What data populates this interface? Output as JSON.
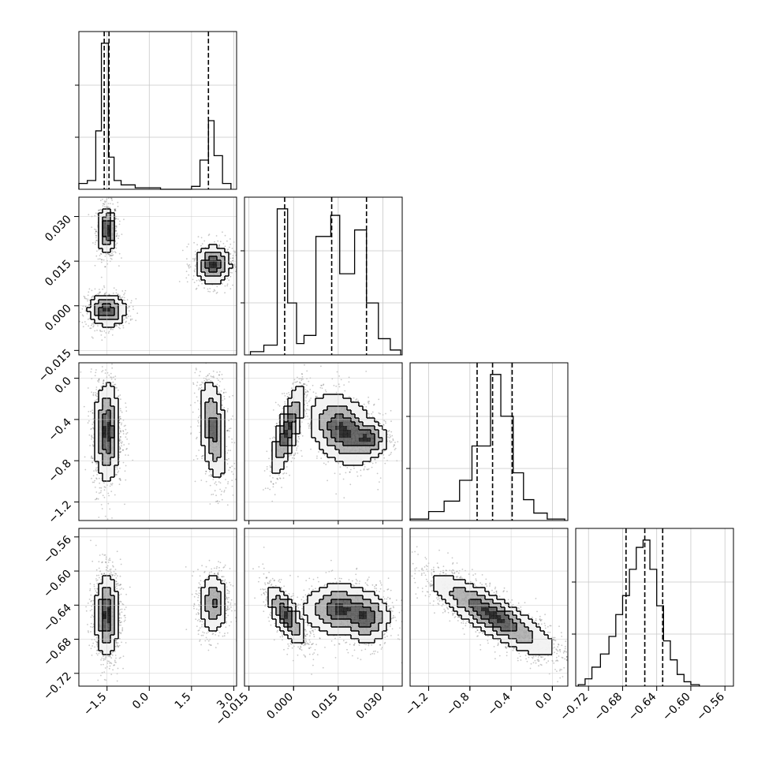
{
  "chart_data": {
    "type": "corner",
    "parameters": 4,
    "axes": [
      {
        "id": "p0",
        "range": [
          -2.5,
          3.1
        ],
        "ticks": [
          -1.5,
          0.0,
          1.5,
          3.0
        ],
        "tick_labels": [
          "−1.5",
          "0.0",
          "1.5",
          "3.0"
        ]
      },
      {
        "id": "p1",
        "range": [
          -0.0165,
          0.0365
        ],
        "ticks": [
          -0.015,
          0.0,
          0.015,
          0.03
        ],
        "tick_labels": [
          "−0.015",
          "0.000",
          "0.015",
          "0.030"
        ]
      },
      {
        "id": "p2",
        "range": [
          -1.38,
          0.15
        ],
        "ticks": [
          -1.2,
          -0.8,
          -0.4,
          0.0
        ],
        "tick_labels": [
          "−1.2",
          "−0.8",
          "−0.4",
          "0.0"
        ]
      },
      {
        "id": "p3",
        "range": [
          -0.735,
          -0.55
        ],
        "ticks": [
          -0.72,
          -0.68,
          -0.64,
          -0.6,
          -0.56
        ],
        "tick_labels": [
          "−0.72",
          "−0.68",
          "−0.64",
          "−0.60",
          "−0.56"
        ]
      }
    ],
    "histograms": [
      {
        "param": "p0",
        "bins": [
          [
            -2.5,
            -2.2,
            0.04
          ],
          [
            -2.2,
            -1.9,
            0.06
          ],
          [
            -1.9,
            -1.7,
            0.4
          ],
          [
            -1.7,
            -1.45,
            1.0
          ],
          [
            -1.45,
            -1.25,
            0.22
          ],
          [
            -1.25,
            -1.0,
            0.06
          ],
          [
            -1.0,
            -0.5,
            0.03
          ],
          [
            -0.5,
            0.4,
            0.01
          ],
          [
            0.4,
            1.5,
            0.0
          ],
          [
            1.5,
            1.8,
            0.02
          ],
          [
            1.8,
            2.1,
            0.2
          ],
          [
            2.1,
            2.3,
            0.47
          ],
          [
            2.3,
            2.6,
            0.23
          ],
          [
            2.6,
            2.9,
            0.04
          ]
        ],
        "quantiles": [
          -1.6,
          -1.43,
          2.1
        ]
      },
      {
        "param": "p1",
        "bins": [
          [
            -0.0145,
            -0.01,
            0.02
          ],
          [
            -0.01,
            -0.0055,
            0.06
          ],
          [
            -0.0055,
            -0.002,
            0.9
          ],
          [
            -0.002,
            0.001,
            0.32
          ],
          [
            0.001,
            0.0035,
            0.07
          ],
          [
            0.0035,
            0.0075,
            0.12
          ],
          [
            0.0075,
            0.0125,
            0.73
          ],
          [
            0.0125,
            0.0155,
            0.86
          ],
          [
            0.0155,
            0.0205,
            0.5
          ],
          [
            0.0205,
            0.0245,
            0.77
          ],
          [
            0.0245,
            0.0285,
            0.32
          ],
          [
            0.0285,
            0.0325,
            0.1
          ],
          [
            0.0325,
            0.036,
            0.03
          ]
        ],
        "quantiles": [
          -0.003,
          0.0128,
          0.0245
        ]
      },
      {
        "param": "p2",
        "bins": [
          [
            -1.38,
            -1.2,
            0.01
          ],
          [
            -1.2,
            -1.05,
            0.06
          ],
          [
            -1.05,
            -0.9,
            0.13
          ],
          [
            -0.9,
            -0.78,
            0.27
          ],
          [
            -0.78,
            -0.6,
            0.5
          ],
          [
            -0.6,
            -0.5,
            0.98
          ],
          [
            -0.5,
            -0.38,
            0.7
          ],
          [
            -0.38,
            -0.28,
            0.32
          ],
          [
            -0.28,
            -0.18,
            0.14
          ],
          [
            -0.18,
            -0.05,
            0.05
          ],
          [
            -0.05,
            0.12,
            0.01
          ]
        ],
        "quantiles": [
          -0.73,
          -0.58,
          -0.39
        ]
      },
      {
        "param": "p3",
        "bins": [
          [
            -0.732,
            -0.724,
            0.01
          ],
          [
            -0.724,
            -0.716,
            0.05
          ],
          [
            -0.716,
            -0.706,
            0.13
          ],
          [
            -0.706,
            -0.696,
            0.22
          ],
          [
            -0.696,
            -0.688,
            0.34
          ],
          [
            -0.688,
            -0.68,
            0.49
          ],
          [
            -0.68,
            -0.672,
            0.62
          ],
          [
            -0.672,
            -0.664,
            0.8
          ],
          [
            -0.664,
            -0.656,
            0.95
          ],
          [
            -0.656,
            -0.648,
            1.0
          ],
          [
            -0.648,
            -0.64,
            0.8
          ],
          [
            -0.64,
            -0.632,
            0.55
          ],
          [
            -0.632,
            -0.624,
            0.31
          ],
          [
            -0.624,
            -0.616,
            0.18
          ],
          [
            -0.616,
            -0.608,
            0.08
          ],
          [
            -0.608,
            -0.6,
            0.03
          ],
          [
            -0.6,
            -0.59,
            0.01
          ]
        ],
        "quantiles": [
          -0.676,
          -0.654,
          -0.633
        ]
      }
    ],
    "density_panels": [
      {
        "x": "p0",
        "y": "p1",
        "clusters": [
          {
            "cx": -1.5,
            "cy": 0.0253,
            "sx": 0.13,
            "sy": 0.0032,
            "rho": 0.0,
            "w": 0.35
          },
          {
            "cx": -1.5,
            "cy": -0.0015,
            "sx": 0.27,
            "sy": 0.0022,
            "rho": 0.0,
            "w": 0.32
          },
          {
            "cx": 2.28,
            "cy": 0.0138,
            "sx": 0.25,
            "sy": 0.0026,
            "rho": 0.0,
            "w": 0.33
          }
        ],
        "contour_levels": [
          0.05,
          0.25,
          0.6
        ]
      },
      {
        "x": "p0",
        "y": "p2",
        "clusters": [
          {
            "cx": -1.5,
            "cy": -0.52,
            "sx": 0.19,
            "sy": 0.19,
            "rho": 0.0,
            "w": 0.58
          },
          {
            "cx": 2.28,
            "cy": -0.5,
            "sx": 0.2,
            "sy": 0.2,
            "rho": -0.35,
            "w": 0.42
          }
        ],
        "contour_levels": [
          0.05,
          0.25,
          0.6
        ]
      },
      {
        "x": "p1",
        "y": "p2",
        "clusters": [
          {
            "cx": -0.002,
            "cy": -0.5,
            "sx": 0.0022,
            "sy": 0.17,
            "rho": 0.75,
            "w": 0.36
          },
          {
            "cx": 0.0165,
            "cy": -0.5,
            "sx": 0.0045,
            "sy": 0.14,
            "rho": -0.3,
            "w": 0.36
          },
          {
            "cx": 0.025,
            "cy": -0.59,
            "sx": 0.0028,
            "sy": 0.07,
            "rho": 0.0,
            "w": 0.28
          }
        ],
        "contour_levels": [
          0.05,
          0.25,
          0.6
        ]
      },
      {
        "x": "p0",
        "y": "p3",
        "clusters": [
          {
            "cx": -1.5,
            "cy": -0.652,
            "sx": 0.17,
            "sy": 0.019,
            "rho": 0.0,
            "w": 0.62
          },
          {
            "cx": 2.28,
            "cy": -0.638,
            "sx": 0.2,
            "sy": 0.014,
            "rho": 0.0,
            "w": 0.38
          }
        ],
        "contour_levels": [
          0.05,
          0.25,
          0.6
        ]
      },
      {
        "x": "p1",
        "y": "p3",
        "clusters": [
          {
            "cx": -0.0025,
            "cy": -0.652,
            "sx": 0.0026,
            "sy": 0.014,
            "rho": -0.7,
            "w": 0.34
          },
          {
            "cx": 0.0155,
            "cy": -0.645,
            "sx": 0.0048,
            "sy": 0.012,
            "rho": 0.0,
            "w": 0.36
          },
          {
            "cx": 0.0245,
            "cy": -0.655,
            "sx": 0.0032,
            "sy": 0.012,
            "rho": 0.0,
            "w": 0.3
          }
        ],
        "contour_levels": [
          0.05,
          0.25,
          0.6
        ]
      },
      {
        "x": "p2",
        "y": "p3",
        "clusters": [
          {
            "cx": -0.58,
            "cy": -0.652,
            "sx": 0.24,
            "sy": 0.019,
            "rho": -0.85,
            "w": 1.0
          }
        ],
        "contour_levels": [
          0.05,
          0.25,
          0.6
        ]
      }
    ],
    "grid": true,
    "title": "",
    "xlabel": "",
    "ylabel": ""
  }
}
